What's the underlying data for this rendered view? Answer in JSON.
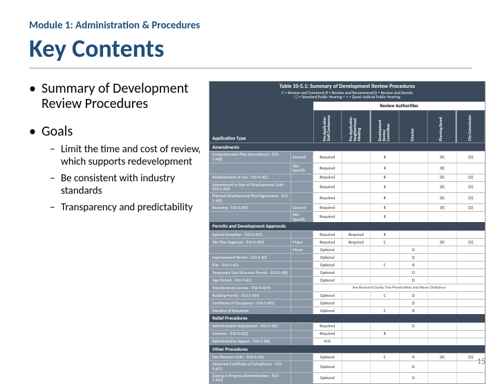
{
  "module_line": "Module 1: Administration & Procedures",
  "title": "Key Contents",
  "bullets": {
    "b1": "Summary of Development Review Procedures",
    "b2": "Goals",
    "sub1": "Limit the time and cost of review, which supports redevelopment",
    "sub2": "Be consistent with industry standards",
    "sub3": "Transparency and predictability"
  },
  "page_number": "15",
  "table": {
    "header_title": "Table 10-5.1: Summary of Development Review Procedures",
    "header_sub": "C = Review and Comment    R = Review and Recommend    D = Review and Decide\n[ ] = Standard Public Hearing    < > = Quasi-Judicial Public Hearing",
    "app_type_label": "Application Type",
    "review_auth_label": "Review Authorities",
    "col_headers": [
      "Pre-Application Staff Conference",
      "Pre-Application Neighborhood Meeting",
      "Development Review Committee",
      "Director",
      "Planning Board",
      "City Commission"
    ],
    "sections": [
      {
        "title": "Amendments",
        "rows": [
          {
            "c0": "Comprehensive Plan Amendment - §10-5.4(B)",
            "c1": "General",
            "cells": [
              "Required",
              "",
              "R",
              "",
              "[R]",
              "[D]"
            ]
          },
          {
            "c0": "",
            "c1": "Site-Specific",
            "cells": [
              "Required",
              "",
              "R",
              "",
              "[R]",
              "<D>"
            ]
          },
          {
            "c0": "Establishment of Use - §10-5.4(C)",
            "c1": "",
            "cells": [
              "Required",
              "",
              "R",
              "",
              "[R]",
              "[D]"
            ]
          },
          {
            "c0": "Amendment to Text of Development Code - §10-5.4(D)",
            "c1": "",
            "cells": [
              "Required",
              "",
              "R",
              "",
              "[R]",
              "[D]"
            ]
          },
          {
            "c0": "Planned Development Plan/Agreement - §10-5.4(E)",
            "c1": "",
            "cells": [
              "Required",
              "",
              "R",
              "",
              "[R]",
              "[D]"
            ]
          },
          {
            "c0": "Rezoning - §10-5.4(F)",
            "c1": "General",
            "cells": [
              "Required",
              "",
              "R",
              "",
              "[R]",
              "[D]"
            ]
          },
          {
            "c0": "",
            "c1": "Site-Specific",
            "cells": [
              "Required",
              "",
              "R",
              "",
              "<R>",
              "<D>"
            ]
          }
        ]
      },
      {
        "title": "Permits and Development Approvals",
        "rows": [
          {
            "c0": "Special Exception - §10-5.4(G)",
            "c1": "",
            "cells": [
              "Required",
              "Required",
              "R",
              "",
              "<D>",
              ""
            ]
          },
          {
            "c0": "Site Plan Approval - §10-5.4(H)",
            "c1": "Major",
            "cells": [
              "Required",
              "Required",
              "C",
              "",
              "[R]",
              "[D]"
            ]
          },
          {
            "c0": "",
            "c1": "Minor",
            "cells": [
              "Optional",
              "",
              "",
              "D",
              "",
              ""
            ]
          },
          {
            "c0": "Improvement Permit - §10-5.4(I)",
            "c1": "",
            "cells": [
              "Optional",
              "",
              "",
              "D",
              "",
              ""
            ]
          },
          {
            "c0": "Plat - §10-5.4(J)",
            "c1": "",
            "cells": [
              "Optional",
              "",
              "C",
              "R",
              "<R>",
              "<D>"
            ]
          },
          {
            "c0": "Temporary Use/Structure Permit - §10-5.4(K)",
            "c1": "",
            "cells": [
              "Optional",
              "",
              "",
              "D",
              "",
              ""
            ]
          },
          {
            "c0": "Sign Permit - §10-5.4(L)",
            "c1": "",
            "cells": [
              "Optional",
              "",
              "",
              "D",
              "",
              ""
            ]
          },
          {
            "c0": "Tree Removal License - §10-5.4(M)",
            "c1": "",
            "wide": "See Broward County Tree Preservation and Abuse Ordinance"
          },
          {
            "c0": "Building Permit - §10-5.4(N)",
            "c1": "",
            "cells": [
              "Optional",
              "",
              "C",
              "D",
              "",
              ""
            ]
          },
          {
            "c0": "Certificate of Occupancy - §10-5.4(O)",
            "c1": "",
            "cells": [
              "Optional",
              "",
              "",
              "D",
              "",
              ""
            ]
          },
          {
            "c0": "Vacation of Easement",
            "c1": "",
            "cells": [
              "Optional",
              "",
              "C",
              "R",
              "",
              "<D>"
            ]
          }
        ]
      },
      {
        "title": "Relief Procedures",
        "rows": [
          {
            "c0": "Administrative Adjustment - §10-5.4(P)",
            "c1": "",
            "cells": [
              "Required",
              "",
              "",
              "D",
              "",
              ""
            ]
          },
          {
            "c0": "Variance - §10-5.4(Q)",
            "c1": "",
            "cells": [
              "Required",
              "",
              "R",
              "",
              "<D>",
              ""
            ]
          },
          {
            "c0": "Administrative Appeal - §10-5.4(R)",
            "c1": "",
            "cells": [
              "N/A",
              "",
              "",
              "",
              "<D>",
              ""
            ]
          }
        ]
      },
      {
        "title": "Other Procedures",
        "rows": [
          {
            "c0": "Flex/Reserve Units - §10-5.4(S)",
            "c1": "",
            "cells": [
              "Optional",
              "",
              "C",
              "R",
              "[R]",
              "[D]"
            ]
          },
          {
            "c0": "Newsrack Certificate of Compliance - §10-5.4(T)",
            "c1": "",
            "cells": [
              "Optional",
              "",
              "",
              "D",
              "",
              ""
            ]
          },
          {
            "c0": "Zoning in Progress Determination - §10-5.4(U)",
            "c1": "",
            "cells": [
              "Optional",
              "",
              "",
              "D",
              "",
              ""
            ]
          }
        ]
      }
    ]
  }
}
